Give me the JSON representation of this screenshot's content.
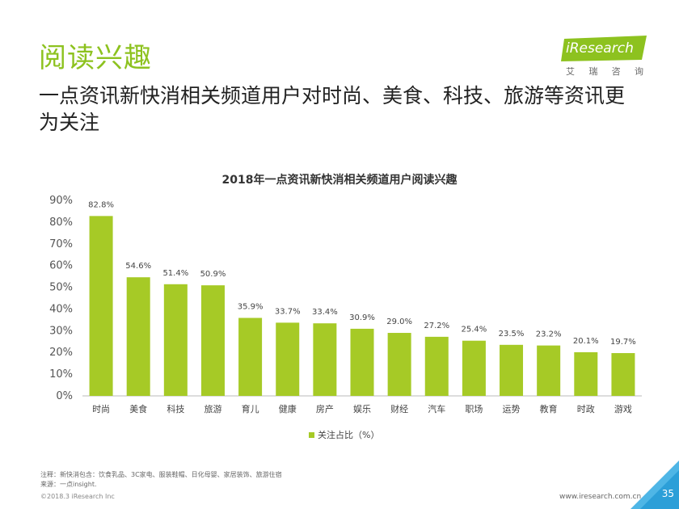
{
  "header": {
    "section_title": "阅读兴趣",
    "headline": "一点资讯新快消相关频道用户对时尚、美食、科技、旅游等资讯更为关注"
  },
  "logo": {
    "word": "iResearch",
    "sub_chars": [
      "艾",
      "瑞",
      "咨",
      "询"
    ],
    "accent_color": "#8dc21f"
  },
  "chart_data": {
    "type": "bar",
    "title": "2018年一点资讯新快消相关频道用户阅读兴趣",
    "categories": [
      "时尚",
      "美食",
      "科技",
      "旅游",
      "育儿",
      "健康",
      "房产",
      "娱乐",
      "财经",
      "汽车",
      "职场",
      "运势",
      "教育",
      "时政",
      "游戏"
    ],
    "series": [
      {
        "name": "关注占比（%）",
        "values": [
          82.8,
          54.6,
          51.4,
          50.9,
          35.9,
          33.7,
          33.4,
          30.9,
          29.0,
          27.2,
          25.4,
          23.5,
          23.2,
          20.1,
          19.7
        ],
        "labels": [
          "82.8%",
          "54.6%",
          "51.4%",
          "50.9%",
          "35.9%",
          "33.7%",
          "33.4%",
          "30.9%",
          "29.0%",
          "27.2%",
          "25.4%",
          "23.5%",
          "23.2%",
          "20.1%",
          "19.7%"
        ]
      }
    ],
    "ylim": [
      0,
      90
    ],
    "yticks": [
      "0%",
      "10%",
      "20%",
      "30%",
      "40%",
      "50%",
      "60%",
      "70%",
      "80%",
      "90%"
    ],
    "bar_color": "#a6ca26",
    "grid": false,
    "legend_position": "bottom"
  },
  "footer": {
    "note": "注释：新快消包含：饮食乳品、3C家电、服装鞋帽、日化母婴、家居装饰、旅游住宿",
    "source": "来源：一点insight.",
    "copyright": "©2018.3 iResearch Inc",
    "website": "www.iresearch.com.cn",
    "page_number": "35"
  }
}
